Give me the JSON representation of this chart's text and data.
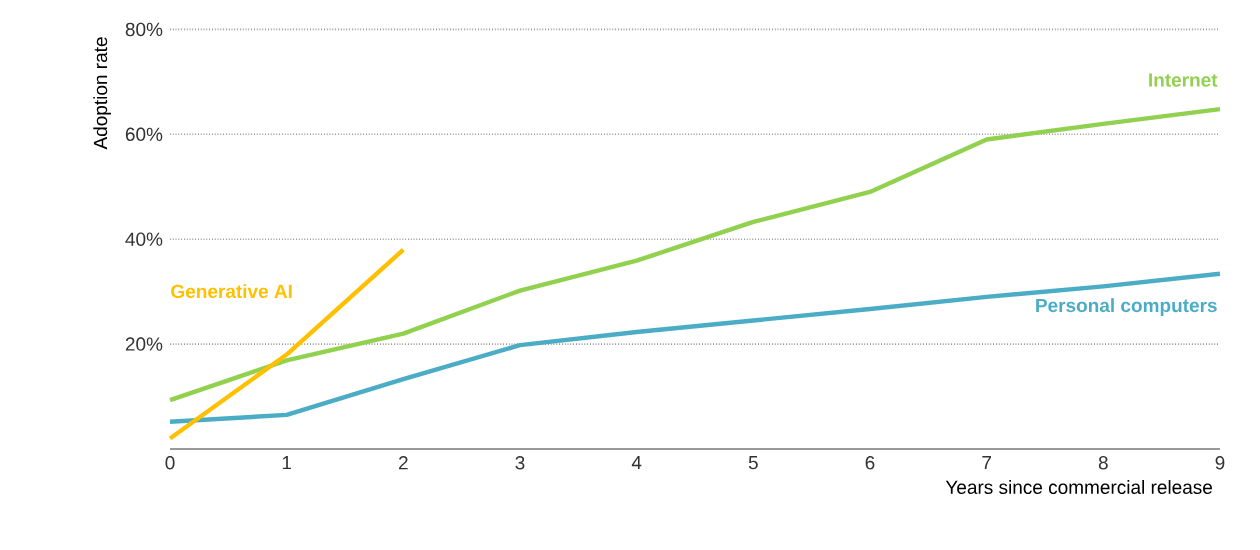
{
  "chart_data": {
    "type": "line",
    "xlabel": "Years since commercial release",
    "ylabel": "Adoption rate",
    "x": [
      0,
      1,
      2,
      3,
      4,
      5,
      6,
      7,
      8,
      9
    ],
    "series": [
      {
        "name": "Internet",
        "color": "#92d050",
        "values": [
          9.3,
          16.9,
          22,
          30.2,
          35.9,
          43.3,
          49,
          59,
          62,
          64.8
        ]
      },
      {
        "name": "Personal computers",
        "color": "#4bacc6",
        "values": [
          5.2,
          6.5,
          13.3,
          19.8,
          22.3,
          24.5,
          26.7,
          29,
          31,
          33.4
        ]
      },
      {
        "name": "Generative AI",
        "color": "#ffc000",
        "values": [
          2,
          18,
          38,
          null,
          null,
          null,
          null,
          null,
          null,
          null
        ]
      }
    ],
    "xlim": [
      0,
      9
    ],
    "xticks": [
      0,
      1,
      2,
      3,
      4,
      5,
      6,
      7,
      8,
      9
    ],
    "ylim": [
      0,
      80
    ],
    "yticks": [
      {
        "value": 20,
        "label": "20%"
      },
      {
        "value": 40,
        "label": "40%"
      },
      {
        "value": 60,
        "label": "60%"
      },
      {
        "value": 80,
        "label": "80%"
      }
    ],
    "grid": "y",
    "marker": "none",
    "line_style": "solid"
  }
}
